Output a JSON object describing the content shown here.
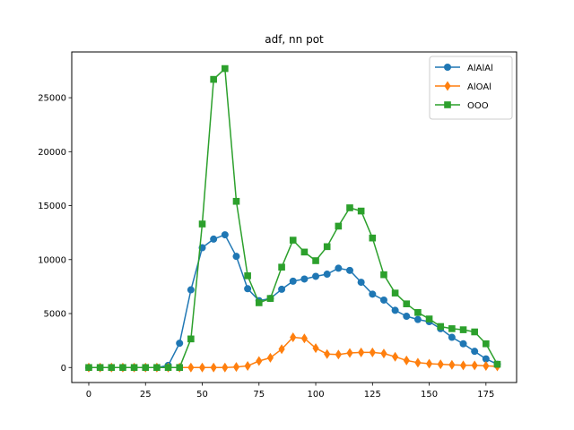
{
  "chart_data": {
    "type": "line",
    "title": "adf, nn pot",
    "xlabel": "",
    "ylabel": "",
    "xlim": [
      -7.5,
      188.5
    ],
    "ylim": [
      -1390,
      29240
    ],
    "x_ticks": [
      0,
      25,
      50,
      75,
      100,
      125,
      150,
      175
    ],
    "y_ticks": [
      0,
      5000,
      10000,
      15000,
      20000,
      25000
    ],
    "grid": false,
    "legend_position": "top-right",
    "x": [
      0,
      5,
      10,
      15,
      20,
      25,
      30,
      35,
      40,
      45,
      50,
      55,
      60,
      65,
      70,
      75,
      80,
      85,
      90,
      95,
      100,
      105,
      110,
      115,
      120,
      125,
      130,
      135,
      140,
      145,
      150,
      155,
      160,
      165,
      170,
      175,
      180
    ],
    "series": [
      {
        "name": "AlAlAl",
        "color": "#1f77b4",
        "marker": "circle",
        "values": [
          0,
          0,
          0,
          0,
          0,
          0,
          0,
          200,
          2250,
          7200,
          11100,
          11900,
          12300,
          10300,
          7300,
          6200,
          6400,
          7250,
          8000,
          8200,
          8450,
          8650,
          9200,
          9000,
          7900,
          6800,
          6250,
          5300,
          4750,
          4450,
          4250,
          3600,
          2800,
          2200,
          1500,
          800,
          300
        ]
      },
      {
        "name": "AlOAl",
        "color": "#ff7f0e",
        "marker": "diamond",
        "values": [
          0,
          0,
          0,
          0,
          0,
          0,
          0,
          0,
          0,
          0,
          0,
          0,
          0,
          50,
          150,
          600,
          900,
          1700,
          2800,
          2700,
          1800,
          1250,
          1200,
          1350,
          1400,
          1400,
          1300,
          1000,
          650,
          450,
          350,
          300,
          250,
          200,
          200,
          150,
          100
        ]
      },
      {
        "name": "OOO",
        "color": "#2ca02c",
        "marker": "square",
        "values": [
          0,
          0,
          0,
          0,
          0,
          0,
          0,
          0,
          0,
          2650,
          13300,
          26700,
          27700,
          15400,
          8500,
          6000,
          6400,
          9300,
          11800,
          10700,
          9900,
          11200,
          13100,
          14800,
          14500,
          12000,
          8600,
          6900,
          5900,
          5100,
          4500,
          3800,
          3600,
          3500,
          3300,
          2200,
          300
        ]
      }
    ]
  }
}
